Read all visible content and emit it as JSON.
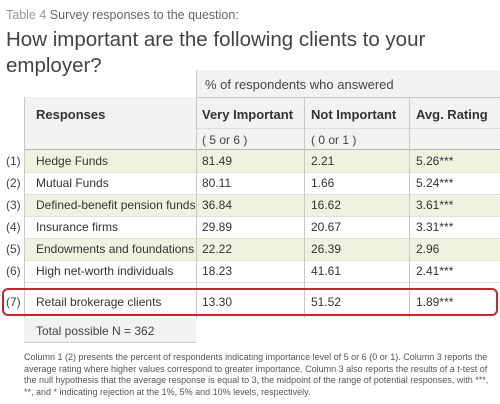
{
  "caption": {
    "label": "Table 4",
    "text": "Survey responses to the question:"
  },
  "question": "How important are the following clients to your employer?",
  "table": {
    "group_header": "% of respondents who answered",
    "columns": [
      "Responses",
      "Very Important",
      "Not Important",
      "Avg. Rating"
    ],
    "subheaders": [
      "( 5 or 6 )",
      "( 0 or 1 )"
    ],
    "rows": [
      {
        "num": "(1)",
        "response": "Hedge Funds",
        "very_important": "81.49",
        "not_important": "2.21",
        "avg_rating": "5.26***"
      },
      {
        "num": "(2)",
        "response": "Mutual Funds",
        "very_important": "80.11",
        "not_important": "1.66",
        "avg_rating": "5.24***"
      },
      {
        "num": "(3)",
        "response": "Defined-benefit pension funds",
        "very_important": "36.84",
        "not_important": "16.62",
        "avg_rating": "3.61***"
      },
      {
        "num": "(4)",
        "response": "Insurance firms",
        "very_important": "29.89",
        "not_important": "20.67",
        "avg_rating": "3.31***"
      },
      {
        "num": "(5)",
        "response": "Endowments and foundations",
        "very_important": "22.22",
        "not_important": "26.39",
        "avg_rating": "2.96"
      },
      {
        "num": "(6)",
        "response": "High net-worth individuals",
        "very_important": "18.23",
        "not_important": "41.61",
        "avg_rating": "2.41***"
      },
      {
        "num": "(7)",
        "response": "Retail brokerage clients",
        "very_important": "13.30",
        "not_important": "51.52",
        "avg_rating": "1.89***"
      }
    ],
    "total": "Total possible N = 362"
  },
  "footnote": "Column 1 (2) presents the percent of respondents indicating importance level of 5 or 6 (0 or 1). Column 3 reports the average rating where higher values correspond to greater importance. Column 3 also reports the results of a t-test of the null hypothesis that the average response is equal to 3, the midpoint of the range of potential responses, with ***, **, and * indicating rejection at the 1%, 5% and 10% levels, respectively.",
  "colors": {
    "band_green": "#eef3df",
    "band_gray": "#f2f2f2",
    "highlight": "#c1282d"
  }
}
